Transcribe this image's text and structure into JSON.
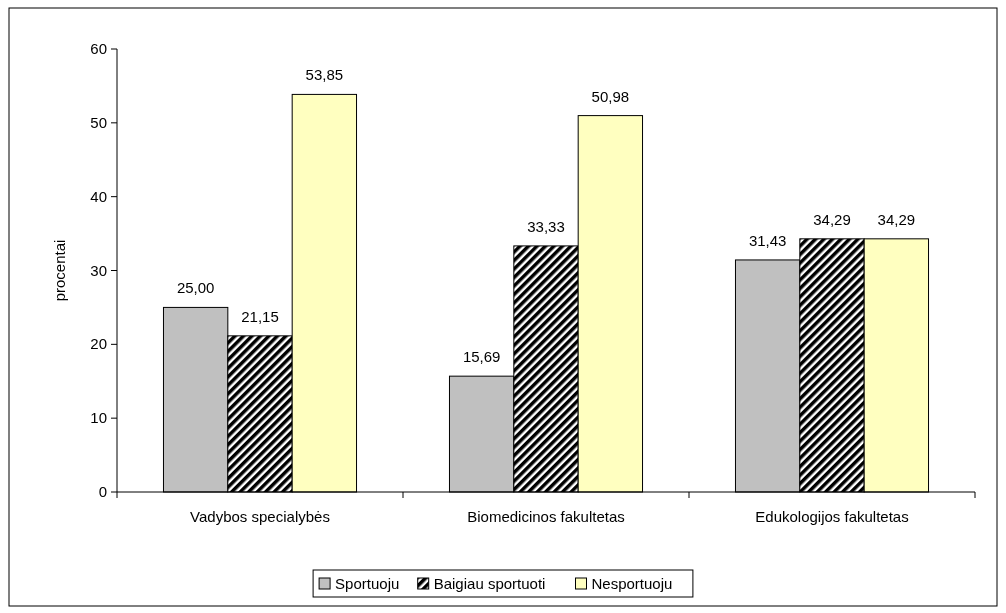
{
  "chart_data": {
    "type": "bar",
    "ylabel": "procentai",
    "categories": [
      "Vadybos specialybės",
      "Biomedicinos fakultetas",
      "Edukologijos fakultetas"
    ],
    "series": [
      {
        "name": "Sportuoju",
        "color": "#c0c0c0",
        "values": [
          25.0,
          15.69,
          31.43
        ],
        "value_labels": [
          "25,00",
          "15,69",
          "31,43"
        ]
      },
      {
        "name": "Baigiau sportuoti",
        "color": "#000000",
        "values": [
          21.15,
          33.33,
          34.29
        ],
        "value_labels": [
          "21,15",
          "33,33",
          "34,29"
        ]
      },
      {
        "name": "Nesportuoju",
        "color": "#ffffc0",
        "values": [
          53.85,
          50.98,
          34.29
        ],
        "value_labels": [
          "53,85",
          "50,98",
          "34,29"
        ]
      }
    ],
    "ylim": [
      0,
      60
    ],
    "yticks": [
      0,
      10,
      20,
      30,
      40,
      50,
      60
    ],
    "legend": "bottom",
    "grid": false
  }
}
